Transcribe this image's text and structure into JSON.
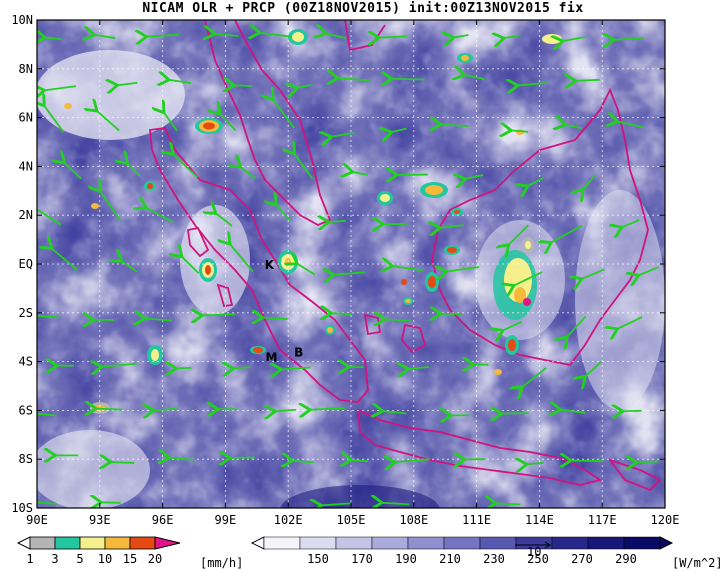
{
  "title": "NICAM OLR + PRCP (00Z18NOV2015) init:00Z13NOV2015 fix",
  "map": {
    "lon_range": [
      90,
      120
    ],
    "lat_range": [
      -10,
      10
    ],
    "x_ticks": [
      "90E",
      "93E",
      "96E",
      "99E",
      "102E",
      "105E",
      "108E",
      "111E",
      "114E",
      "117E",
      "120E"
    ],
    "y_ticks": [
      "10N",
      "8N",
      "6N",
      "4N",
      "2N",
      "EQ",
      "2S",
      "4S",
      "6S",
      "8S",
      "10S"
    ],
    "place_marks": [
      {
        "label": "K",
        "lon": 101.1,
        "lat": -0.2
      },
      {
        "label": "M",
        "lon": 101.2,
        "lat": -4.0
      },
      {
        "label": "B",
        "lon": 102.5,
        "lat": -3.8
      }
    ]
  },
  "precip_colorbar": {
    "labels": [
      "1",
      "3",
      "5",
      "10",
      "15",
      "20"
    ],
    "unit": "[mm/h]",
    "colors": [
      "#b4b4b4",
      "#22c7a0",
      "#f5f08c",
      "#f5b93c",
      "#e64a14",
      "#e1148c"
    ]
  },
  "olr_colorbar": {
    "labels": [
      "150",
      "170",
      "190",
      "210",
      "230",
      "250",
      "270",
      "290"
    ],
    "unit": "[W/m^2]",
    "colors": [
      "#f4f4fb",
      "#dcdcf0",
      "#c4c4e6",
      "#aaaadc",
      "#9090cf",
      "#7474c2",
      "#5858b0",
      "#3c3c9c",
      "#28288a",
      "#181878",
      "#0a0a66"
    ]
  },
  "wind_ref": "10"
}
